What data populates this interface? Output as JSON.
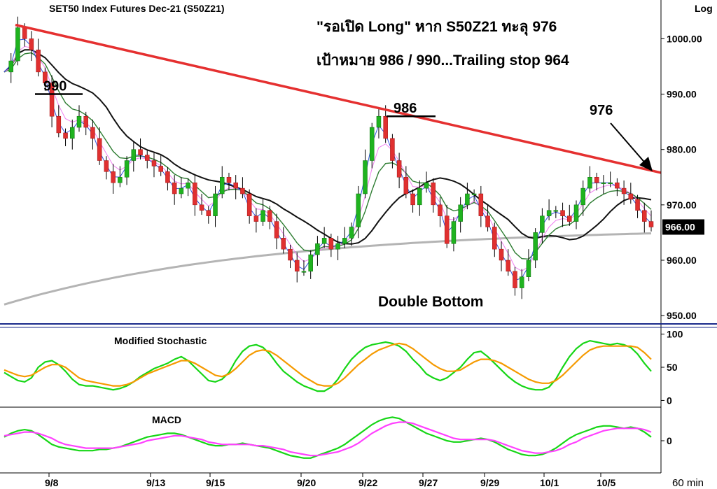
{
  "chart_data": {
    "type": "candlestick",
    "title": "SET50  Index  Futures  Dec-21  (S50Z21)",
    "scale_label": "Log",
    "timeframe_label": "60  min",
    "annotation": {
      "line1": "\"รอเปิด Long\" หาก S50Z21 ทะลุ 976",
      "line2": "เป้าหมาย 986 / 990...Trailing stop 964"
    },
    "price_axis": {
      "ticks": [
        "1000.00",
        "990.00",
        "980.00",
        "970.00",
        "960.00",
        "950.00"
      ],
      "tick_values": [
        1000,
        990,
        980,
        970,
        960,
        950
      ],
      "range": [
        948.5,
        1007
      ],
      "last_price": "966.00",
      "last_value": 966
    },
    "x_axis_labels": [
      "9/8",
      "9/13",
      "9/15",
      "9/20",
      "9/22",
      "9/27",
      "9/29",
      "10/1",
      "10/5"
    ],
    "price_annotations": [
      {
        "label": "990",
        "level": 990
      },
      {
        "label": "986",
        "level": 986
      },
      {
        "label": "976",
        "level": 976
      },
      {
        "label": "Double Bottom"
      }
    ],
    "trendline": {
      "from": 1002.5,
      "to": 975.8,
      "color": "#e53030"
    },
    "close_path": [
      994,
      996,
      1002,
      1000,
      998,
      994,
      992,
      986,
      983,
      982,
      984,
      986,
      984,
      982,
      978,
      976,
      974,
      975,
      978,
      980,
      979,
      978,
      977,
      976,
      974,
      972,
      973,
      974,
      970,
      969,
      968,
      972,
      975,
      974,
      973,
      972,
      968,
      967,
      969,
      967,
      964,
      962,
      960,
      958,
      958,
      961,
      963,
      964,
      962,
      963,
      964,
      966,
      972,
      978,
      984,
      986,
      982,
      978,
      975,
      972,
      970,
      973,
      974,
      970,
      968,
      963,
      967,
      970,
      972,
      972,
      968,
      966,
      962,
      960,
      958,
      955,
      957,
      960,
      965,
      968,
      969,
      969,
      968,
      967,
      970,
      973,
      975,
      974,
      974,
      974,
      973,
      972,
      971,
      969,
      967,
      966
    ],
    "indicators": [
      {
        "title": "Modified  Stochastic",
        "ticks": [
          "100",
          "50",
          "0"
        ],
        "tick_values": [
          100,
          50,
          0
        ],
        "range": [
          -8,
          108
        ],
        "series": [
          {
            "color": "#16d616",
            "values": [
              42,
              36,
              30,
              28,
              34,
              50,
              58,
              60,
              54,
              44,
              32,
              24,
              22,
              22,
              20,
              18,
              16,
              18,
              22,
              28,
              36,
              42,
              48,
              52,
              56,
              62,
              66,
              60,
              50,
              40,
              30,
              28,
              32,
              42,
              60,
              74,
              82,
              84,
              80,
              70,
              56,
              44,
              36,
              28,
              22,
              18,
              14,
              14,
              20,
              32,
              48,
              62,
              72,
              80,
              84,
              86,
              88,
              86,
              82,
              74,
              62,
              52,
              40,
              34,
              30,
              34,
              42,
              50,
              62,
              72,
              74,
              66,
              56,
              46,
              36,
              28,
              22,
              18,
              16,
              16,
              20,
              32,
              50,
              66,
              78,
              86,
              90,
              88,
              86,
              84,
              86,
              84,
              80,
              70,
              56,
              44
            ]
          },
          {
            "color": "#f59a00",
            "values": [
              46,
              42,
              38,
              36,
              38,
              44,
              50,
              54,
              54,
              50,
              42,
              34,
              30,
              28,
              26,
              24,
              22,
              22,
              24,
              28,
              34,
              40,
              44,
              48,
              52,
              56,
              60,
              60,
              56,
              50,
              44,
              38,
              36,
              40,
              48,
              58,
              68,
              74,
              76,
              74,
              68,
              60,
              52,
              44,
              36,
              30,
              24,
              22,
              22,
              26,
              34,
              44,
              54,
              62,
              70,
              76,
              80,
              84,
              86,
              84,
              78,
              70,
              62,
              54,
              48,
              44,
              44,
              46,
              52,
              58,
              62,
              62,
              60,
              56,
              50,
              44,
              38,
              32,
              28,
              26,
              26,
              30,
              38,
              48,
              58,
              68,
              76,
              80,
              82,
              82,
              82,
              82,
              82,
              80,
              72,
              62
            ]
          }
        ]
      },
      {
        "title": "MACD",
        "ticks": [
          "0"
        ],
        "tick_values": [
          0
        ],
        "range": [
          -2.6,
          2.6
        ],
        "series": [
          {
            "color": "#16d616",
            "values": [
              0.3,
              0.6,
              0.8,
              0.9,
              0.8,
              0.5,
              0.1,
              -0.3,
              -0.5,
              -0.6,
              -0.7,
              -0.8,
              -0.8,
              -0.8,
              -0.7,
              -0.7,
              -0.6,
              -0.5,
              -0.3,
              -0.1,
              0.1,
              0.3,
              0.4,
              0.5,
              0.6,
              0.6,
              0.5,
              0.3,
              0.1,
              -0.1,
              -0.3,
              -0.4,
              -0.4,
              -0.3,
              -0.3,
              -0.2,
              -0.3,
              -0.4,
              -0.5,
              -0.6,
              -0.8,
              -1.0,
              -1.2,
              -1.3,
              -1.4,
              -1.4,
              -1.2,
              -1.0,
              -0.8,
              -0.6,
              -0.3,
              0.1,
              0.5,
              0.9,
              1.3,
              1.6,
              1.8,
              1.9,
              1.8,
              1.5,
              1.2,
              0.9,
              0.6,
              0.4,
              0.2,
              0.0,
              -0.1,
              -0.1,
              0.0,
              0.1,
              0.2,
              0.1,
              -0.1,
              -0.4,
              -0.7,
              -0.9,
              -1.1,
              -1.2,
              -1.2,
              -1.1,
              -0.9,
              -0.6,
              -0.2,
              0.2,
              0.5,
              0.7,
              0.9,
              1.1,
              1.2,
              1.2,
              1.1,
              1.0,
              1.1,
              1.0,
              0.7,
              0.3
            ]
          },
          {
            "color": "#ff40ff",
            "values": [
              0.4,
              0.5,
              0.6,
              0.7,
              0.7,
              0.6,
              0.4,
              0.2,
              -0.1,
              -0.3,
              -0.4,
              -0.5,
              -0.6,
              -0.6,
              -0.6,
              -0.6,
              -0.6,
              -0.5,
              -0.4,
              -0.3,
              -0.2,
              0.0,
              0.1,
              0.2,
              0.3,
              0.4,
              0.4,
              0.3,
              0.2,
              0.1,
              -0.1,
              -0.2,
              -0.3,
              -0.3,
              -0.3,
              -0.3,
              -0.3,
              -0.4,
              -0.4,
              -0.5,
              -0.6,
              -0.7,
              -0.9,
              -1.0,
              -1.1,
              -1.2,
              -1.2,
              -1.1,
              -1.0,
              -0.9,
              -0.7,
              -0.5,
              -0.2,
              0.2,
              0.6,
              0.9,
              1.2,
              1.4,
              1.5,
              1.5,
              1.4,
              1.2,
              1.0,
              0.8,
              0.6,
              0.4,
              0.2,
              0.1,
              0.1,
              0.1,
              0.1,
              0.1,
              0.0,
              -0.2,
              -0.4,
              -0.6,
              -0.8,
              -0.9,
              -1.0,
              -1.0,
              -0.9,
              -0.8,
              -0.6,
              -0.3,
              -0.1,
              0.2,
              0.4,
              0.6,
              0.8,
              0.9,
              1.0,
              1.0,
              1.0,
              1.0,
              0.9,
              0.7
            ]
          }
        ]
      }
    ]
  }
}
